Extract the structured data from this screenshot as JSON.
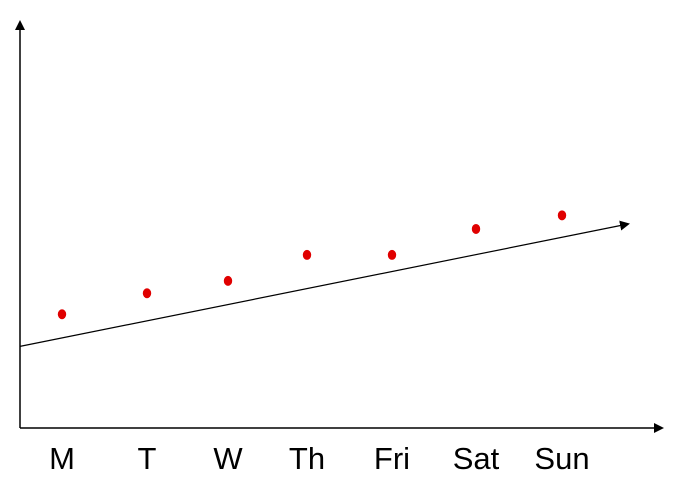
{
  "chart_data": {
    "type": "scatter",
    "title": "",
    "xlabel": "",
    "ylabel": "",
    "categories": [
      "M",
      "T",
      "W",
      "Th",
      "Fri",
      "Sat",
      "Sun"
    ],
    "series": [
      {
        "values": [
          9.2,
          10.9,
          11.9,
          14.0,
          14.0,
          16.1,
          17.2
        ]
      }
    ],
    "trendline": {
      "y_at_start": 6.6,
      "y_at_end": 16.5,
      "has_arrow": true
    },
    "ylim": [
      0,
      33
    ],
    "grid": false,
    "legend": "none",
    "colors": {
      "points": "#e00000",
      "axes": "#000000",
      "trendline": "#000000"
    }
  }
}
